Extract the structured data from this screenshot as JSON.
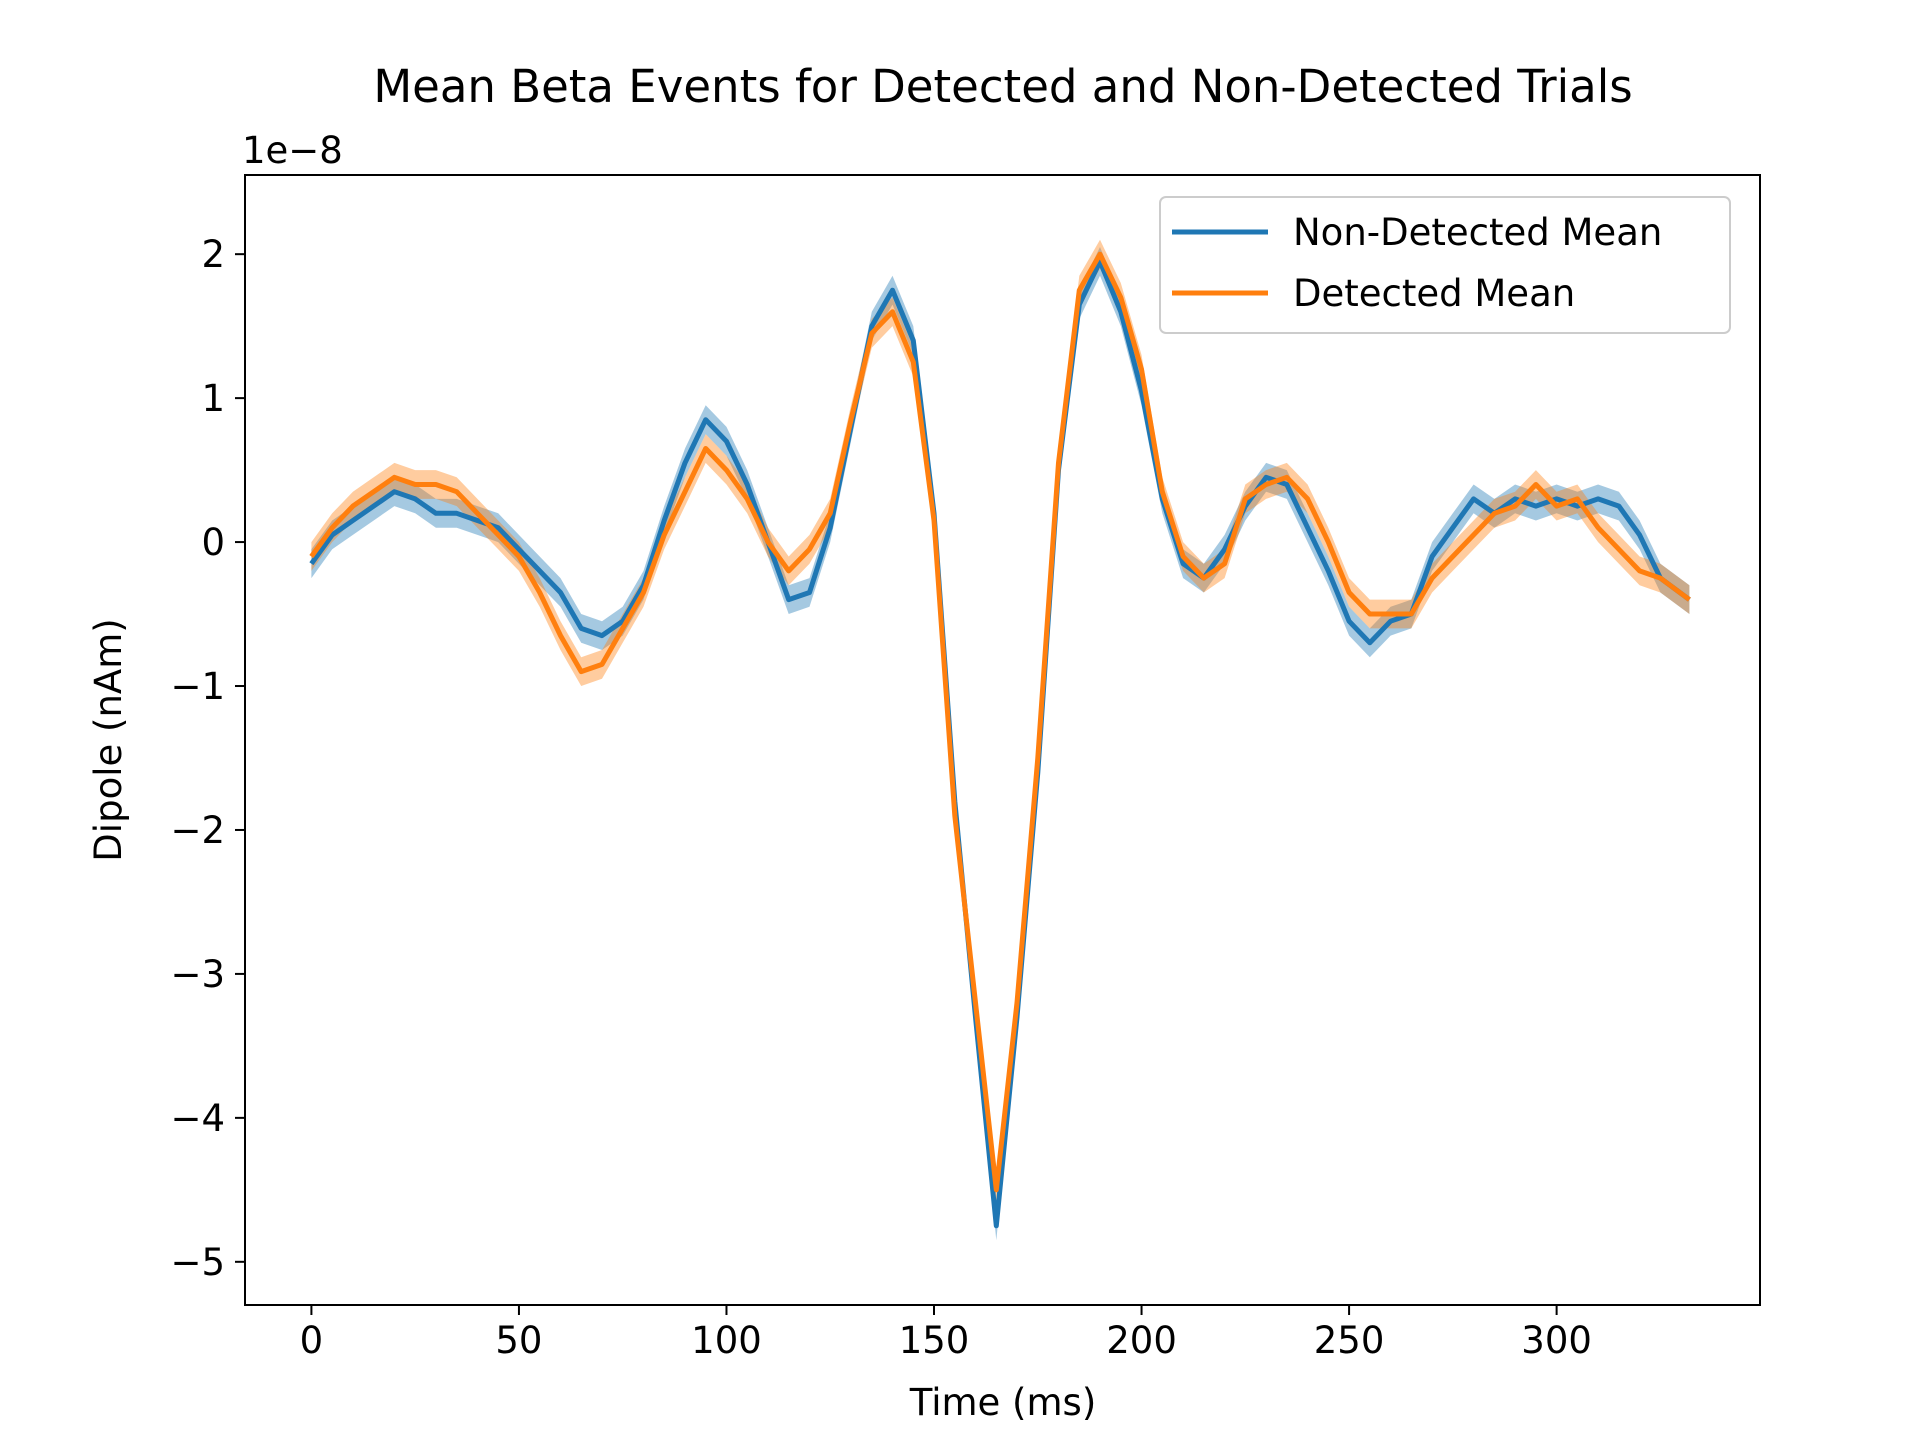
{
  "chart_data": {
    "type": "line",
    "title": "Mean Beta Events for Detected and Non-Detected Trials",
    "xlabel": "Time (ms)",
    "ylabel": "Dipole (nAm)",
    "y_offset_label": "1e−8",
    "xlim": [
      -16,
      349
    ],
    "ylim": [
      -5.3,
      2.55
    ],
    "x_ticks": [
      0,
      50,
      100,
      150,
      200,
      250,
      300
    ],
    "x_tick_labels": [
      "0",
      "50",
      "100",
      "150",
      "200",
      "250",
      "300"
    ],
    "y_ticks": [
      2,
      1,
      0,
      -1,
      -2,
      -3,
      -4,
      -5
    ],
    "y_tick_labels": [
      "2",
      "1",
      "0",
      "−1",
      "−2",
      "−3",
      "−4",
      "−5"
    ],
    "grid": false,
    "legend_position": "top-right",
    "x": [
      0,
      5,
      10,
      15,
      20,
      25,
      30,
      35,
      40,
      45,
      50,
      55,
      60,
      65,
      70,
      75,
      80,
      85,
      90,
      95,
      100,
      105,
      110,
      115,
      120,
      125,
      130,
      135,
      140,
      145,
      150,
      155,
      160,
      165,
      170,
      175,
      180,
      185,
      190,
      195,
      200,
      205,
      210,
      215,
      220,
      225,
      230,
      235,
      240,
      245,
      250,
      255,
      260,
      265,
      270,
      275,
      280,
      285,
      290,
      295,
      300,
      305,
      310,
      315,
      320,
      325,
      332
    ],
    "series": [
      {
        "name": "Non-Detected Mean",
        "color": "#1f77b4",
        "band": 0.1,
        "values": [
          -0.15,
          0.05,
          0.15,
          0.25,
          0.35,
          0.3,
          0.2,
          0.2,
          0.15,
          0.1,
          -0.05,
          -0.2,
          -0.35,
          -0.6,
          -0.65,
          -0.55,
          -0.3,
          0.15,
          0.55,
          0.85,
          0.7,
          0.4,
          0.0,
          -0.4,
          -0.35,
          0.1,
          0.8,
          1.5,
          1.75,
          1.4,
          0.2,
          -1.8,
          -3.3,
          -4.75,
          -3.3,
          -1.6,
          0.5,
          1.65,
          1.95,
          1.6,
          1.05,
          0.3,
          -0.15,
          -0.25,
          -0.05,
          0.25,
          0.45,
          0.4,
          0.1,
          -0.2,
          -0.55,
          -0.7,
          -0.55,
          -0.5,
          -0.1,
          0.1,
          0.3,
          0.2,
          0.3,
          0.25,
          0.3,
          0.25,
          0.3,
          0.25,
          0.05,
          -0.25,
          -0.4
        ]
      },
      {
        "name": "Detected Mean",
        "color": "#ff7f0e",
        "band": 0.1,
        "values": [
          -0.1,
          0.1,
          0.25,
          0.35,
          0.45,
          0.4,
          0.4,
          0.35,
          0.2,
          0.05,
          -0.1,
          -0.35,
          -0.65,
          -0.9,
          -0.85,
          -0.6,
          -0.35,
          0.05,
          0.35,
          0.65,
          0.5,
          0.3,
          0.0,
          -0.2,
          -0.05,
          0.2,
          0.85,
          1.45,
          1.6,
          1.25,
          0.15,
          -1.9,
          -3.2,
          -4.5,
          -3.2,
          -1.5,
          0.55,
          1.75,
          2.0,
          1.7,
          1.2,
          0.35,
          -0.1,
          -0.25,
          -0.15,
          0.3,
          0.4,
          0.45,
          0.3,
          0.0,
          -0.35,
          -0.5,
          -0.5,
          -0.5,
          -0.25,
          -0.1,
          0.05,
          0.2,
          0.25,
          0.4,
          0.25,
          0.3,
          0.1,
          -0.05,
          -0.2,
          -0.25,
          -0.4
        ]
      }
    ]
  }
}
